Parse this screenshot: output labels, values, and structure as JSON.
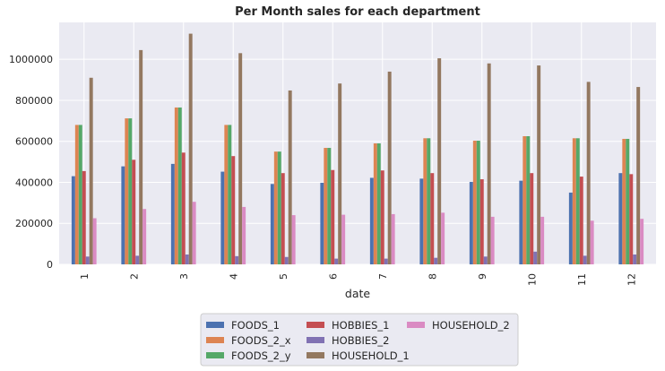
{
  "chart_data": {
    "type": "bar",
    "title": "Per Month sales for each department",
    "xlabel": "date",
    "ylabel": "",
    "categories": [
      "1",
      "2",
      "3",
      "4",
      "5",
      "6",
      "7",
      "8",
      "9",
      "10",
      "11",
      "12"
    ],
    "ylim": [
      0,
      1180000
    ],
    "yticks": [
      0,
      200000,
      400000,
      600000,
      800000,
      1000000
    ],
    "ytick_labels": [
      "0",
      "200000",
      "400000",
      "600000",
      "800000",
      "1000000"
    ],
    "grid": true,
    "legend_placement": "bottom-center",
    "series": [
      {
        "name": "FOODS_1",
        "color": "#4c72b0",
        "values": [
          430000,
          478000,
          490000,
          452000,
          392000,
          398000,
          422000,
          418000,
          402000,
          408000,
          350000,
          445000
        ]
      },
      {
        "name": "FOODS_2_x",
        "color": "#dd8452",
        "values": [
          680000,
          712000,
          765000,
          680000,
          550000,
          568000,
          590000,
          615000,
          603000,
          625000,
          615000,
          612000
        ]
      },
      {
        "name": "FOODS_2_y",
        "color": "#55a868",
        "values": [
          680000,
          712000,
          765000,
          680000,
          550000,
          568000,
          590000,
          615000,
          603000,
          625000,
          615000,
          612000
        ]
      },
      {
        "name": "HOBBIES_1",
        "color": "#c44e52",
        "values": [
          455000,
          510000,
          545000,
          528000,
          445000,
          460000,
          458000,
          445000,
          415000,
          445000,
          428000,
          440000
        ]
      },
      {
        "name": "HOBBIES_2",
        "color": "#8172b3",
        "values": [
          38000,
          42000,
          48000,
          40000,
          36000,
          28000,
          28000,
          32000,
          38000,
          62000,
          42000,
          48000
        ]
      },
      {
        "name": "HOUSEHOLD_1",
        "color": "#937860",
        "values": [
          910000,
          1045000,
          1125000,
          1030000,
          848000,
          882000,
          940000,
          1005000,
          980000,
          970000,
          890000,
          865000
        ]
      },
      {
        "name": "HOUSEHOLD_2",
        "color": "#da8bc3",
        "values": [
          225000,
          270000,
          305000,
          280000,
          240000,
          242000,
          245000,
          252000,
          232000,
          232000,
          213000,
          222000
        ]
      }
    ]
  }
}
